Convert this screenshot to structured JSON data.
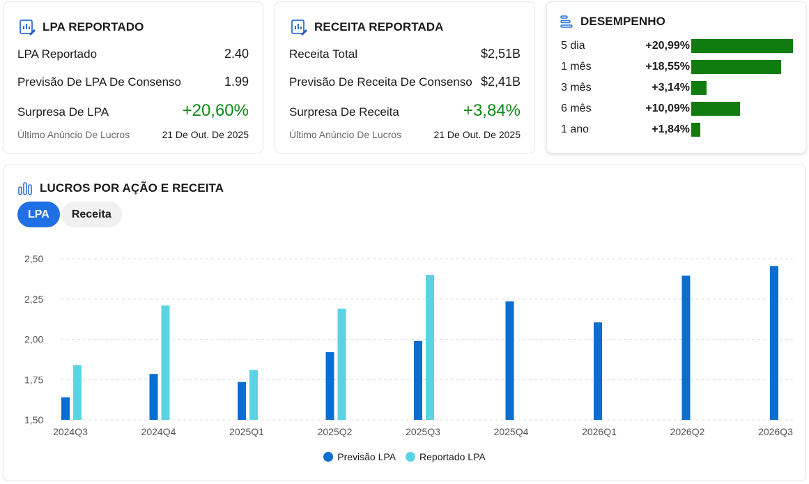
{
  "colors": {
    "forecast": "#0a6ed1",
    "reported": "#5bd3e4",
    "positive": "#0e8a16",
    "perf_bar": "#107c10",
    "tab_active": "#1f6fe5"
  },
  "eps_card": {
    "title": "LPA REPORTADO",
    "icon": "chart-pencil-icon",
    "rows": [
      {
        "label": "LPA Reportado",
        "value": "2.40"
      },
      {
        "label": "Previsão De LPA De Consenso",
        "value": "1.99"
      },
      {
        "label": "Surpresa De LPA",
        "value": "+20,60%"
      }
    ],
    "footer": {
      "label": "Último Anúncio De Lucros",
      "value": "21 De Out. De 2025"
    }
  },
  "revenue_card": {
    "title": "RECEITA REPORTADA",
    "icon": "chart-pencil-icon",
    "rows": [
      {
        "label": "Receita Total",
        "value": "$2,51B"
      },
      {
        "label": "Previsão De Receita De Consenso",
        "value": "$2,41B"
      },
      {
        "label": "Surpresa De Receita",
        "value": "+3,84%"
      }
    ],
    "footer": {
      "label": "Último Anúncio De Lucros",
      "value": "21 De Out. De 2025"
    }
  },
  "performance": {
    "title": "DESEMPENHO",
    "icon": "bars-list-icon",
    "items": [
      {
        "period": "5 dia",
        "pct": "+20,99%",
        "value": 20.99
      },
      {
        "period": "1 mês",
        "pct": "+18,55%",
        "value": 18.55
      },
      {
        "period": "3 mês",
        "pct": "+3,14%",
        "value": 3.14
      },
      {
        "period": "6 mês",
        "pct": "+10,09%",
        "value": 10.09
      },
      {
        "period": "1 ano",
        "pct": "+1,84%",
        "value": 1.84
      }
    ]
  },
  "chart_card": {
    "title": "LUCROS POR AÇÃO E RECEITA",
    "icon": "bar-chart-icon",
    "tabs": [
      {
        "label": "LPA",
        "active": true
      },
      {
        "label": "Receita",
        "active": false
      }
    ]
  },
  "chart_data": {
    "type": "bar",
    "categories": [
      "2024Q3",
      "2024Q4",
      "2025Q1",
      "2025Q2",
      "2025Q3",
      "2025Q4",
      "2026Q1",
      "2026Q2",
      "2026Q3"
    ],
    "series": [
      {
        "name": "Previsão LPA",
        "values": [
          1.64,
          1.785,
          1.735,
          1.92,
          1.99,
          2.235,
          2.105,
          2.395,
          2.455
        ]
      },
      {
        "name": "Reportado LPA",
        "values": [
          1.84,
          2.21,
          1.81,
          2.19,
          2.4,
          null,
          null,
          null,
          null
        ]
      }
    ],
    "ylim": [
      1.5,
      2.5
    ],
    "yticks": [
      1.5,
      1.75,
      2.0,
      2.25,
      2.5
    ],
    "ytick_labels": [
      "1,50",
      "1,75",
      "2,00",
      "2,25",
      "2,50"
    ],
    "grid": true,
    "legend": "bottom",
    "title": "",
    "xlabel": "",
    "ylabel": ""
  }
}
